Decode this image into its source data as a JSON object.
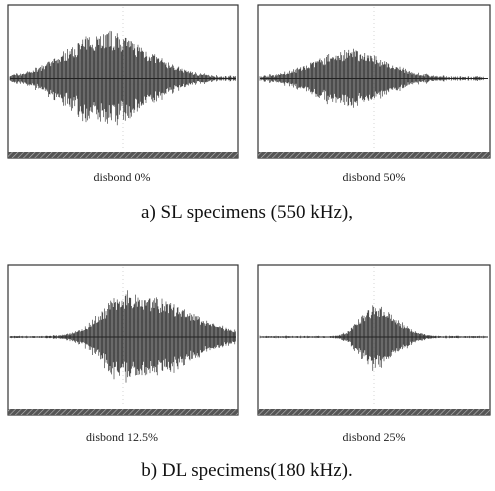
{
  "panels": [
    {
      "caption": "disbond 0%"
    },
    {
      "caption": "disbond 50%"
    },
    {
      "caption": "disbond 12.5%"
    },
    {
      "caption": "disbond 25%"
    }
  ],
  "groups": [
    {
      "caption": "a) SL specimens (550 kHz),"
    },
    {
      "caption": "b) DL specimens(180 kHz)."
    }
  ]
}
